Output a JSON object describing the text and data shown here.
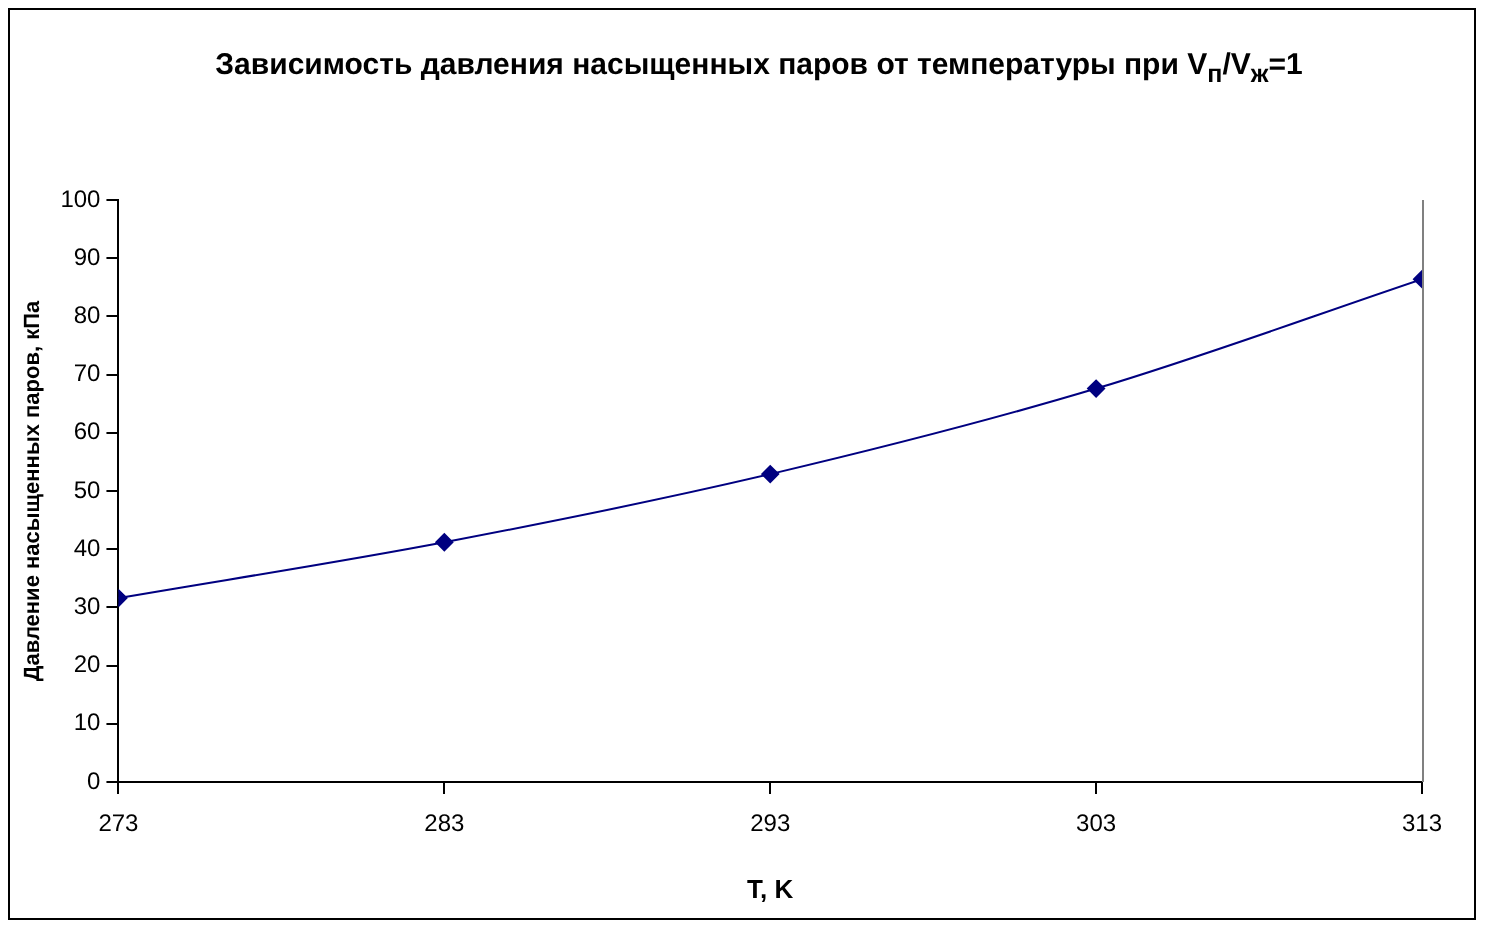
{
  "chart_data": {
    "type": "line",
    "title": "Зависимость давления насыщенных паров от температуры при V$_{п}$/V$_{ж}$=1",
    "xlabel": "T, K",
    "ylabel": "Давление насыщенных паров, кПа",
    "x": [
      273,
      283,
      293,
      303,
      313
    ],
    "series": [
      {
        "color": "#000080",
        "values": [
          31.6,
          41.2,
          52.9,
          67.6,
          86.4
        ]
      }
    ],
    "xlim": [
      273,
      313
    ],
    "xticks": [
      273,
      283,
      293,
      303,
      313
    ],
    "ylim": [
      0,
      100
    ],
    "yticks": [
      0,
      10,
      20,
      30,
      40,
      50,
      60,
      70,
      80,
      90,
      100
    ],
    "marker": "diamond",
    "line_style": "solid"
  }
}
